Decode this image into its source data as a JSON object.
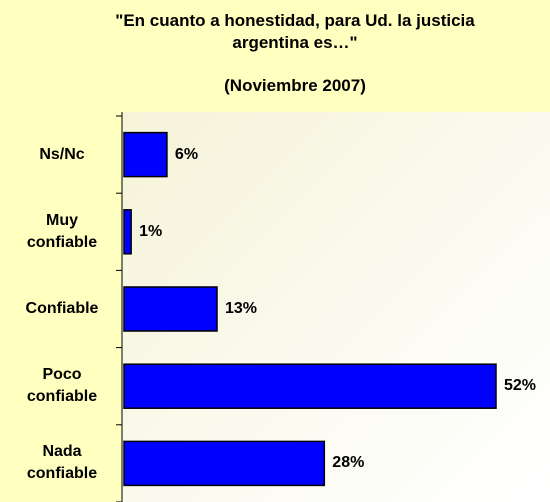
{
  "chart_data": {
    "type": "bar",
    "orientation": "horizontal",
    "title": "\"En cuanto a honestidad, para Ud. la justicia argentina es…\"",
    "subtitle": "(Noviembre 2007)",
    "categories": [
      "Ns/Nc",
      "Muy confiable",
      "Confiable",
      "Poco confiable",
      "Nada confiable"
    ],
    "values": [
      6,
      1,
      13,
      52,
      28
    ],
    "value_labels": [
      "6%",
      "1%",
      "13%",
      "52%",
      "28%"
    ],
    "color": "#0000ff"
  }
}
